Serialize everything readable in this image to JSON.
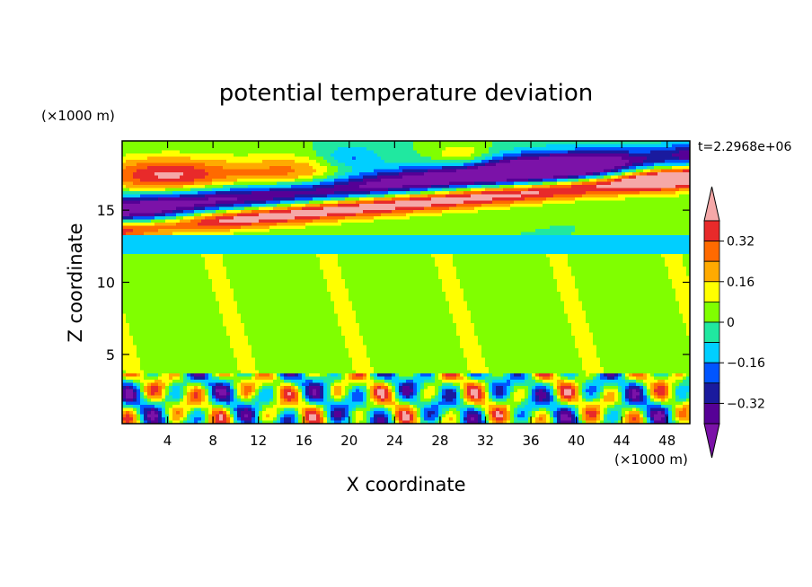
{
  "chart_data": {
    "type": "heatmap",
    "title": "potential temperature deviation",
    "xlabel": "X coordinate",
    "ylabel": "Z coordinate",
    "x_unit": "(×1000 m)",
    "z_unit": "(×1000 m)",
    "time_label": "t=2.2968e+06",
    "xlim": [
      0,
      50
    ],
    "ylim": [
      0.2,
      19.8
    ],
    "x_ticks": [
      4,
      8,
      12,
      16,
      20,
      24,
      28,
      32,
      36,
      40,
      44,
      48
    ],
    "y_ticks": [
      5,
      10,
      15
    ],
    "colorbar": {
      "levels": [
        -0.4,
        -0.32,
        -0.24,
        -0.16,
        -0.08,
        0,
        0.08,
        0.16,
        0.24,
        0.32,
        0.4
      ],
      "labeled_ticks": [
        -0.32,
        -0.16,
        0,
        0.16,
        0.32
      ],
      "tick_labels": [
        "−0.32",
        "−0.16",
        "0",
        "0.16",
        "0.32"
      ],
      "colors": [
        "#7b12a8",
        "#560096",
        "#1a1a9e",
        "#0055ff",
        "#00cfff",
        "#20e8a0",
        "#80ff00",
        "#ffff00",
        "#ffaa00",
        "#ff6a00",
        "#e82a2a",
        "#f5a8a8"
      ],
      "extend": "both"
    }
  }
}
